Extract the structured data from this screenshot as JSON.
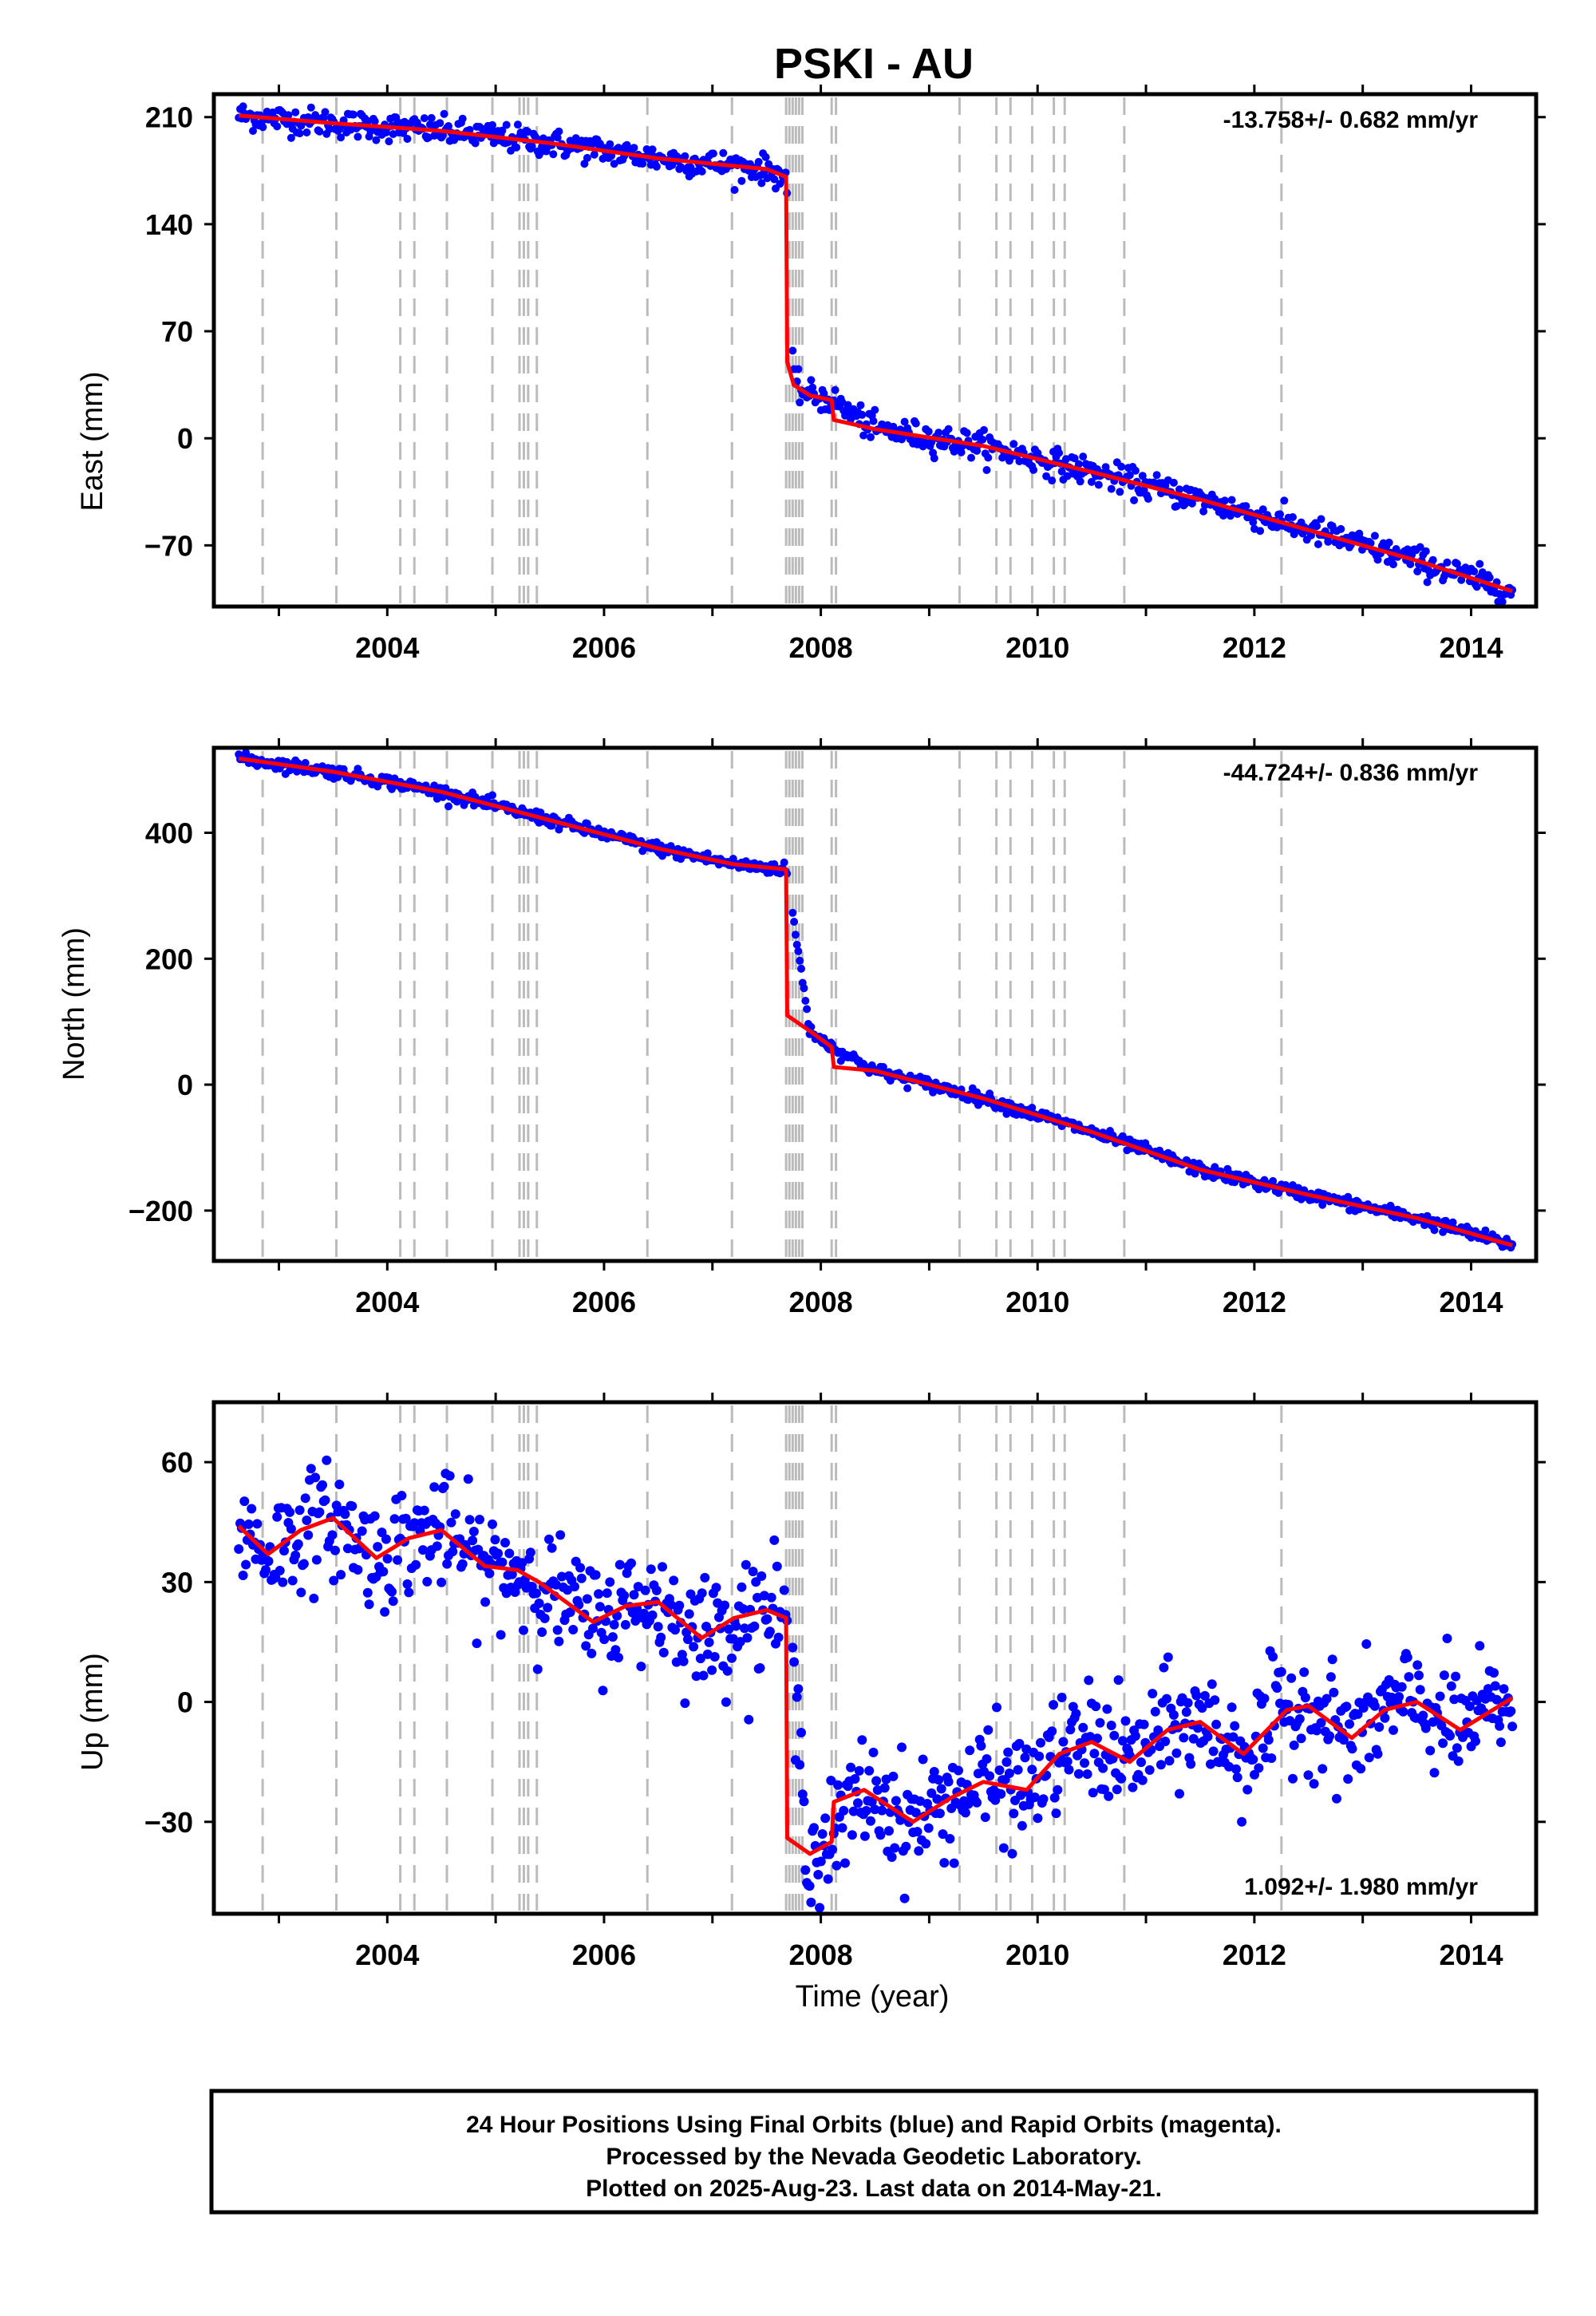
{
  "title": "PSKI - AU",
  "chart_data": [
    {
      "type": "scatter",
      "component": "East",
      "ylabel": "East (mm)",
      "xlabel": "",
      "xlim": [
        2002.4,
        2014.6
      ],
      "ylim": [
        -110,
        225
      ],
      "yticks": [
        210,
        140,
        70,
        0,
        -70
      ],
      "ytick_labels": [
        "210",
        "140",
        "70",
        "0",
        "−70"
      ],
      "xticks": [
        2004,
        2006,
        2008,
        2010,
        2012,
        2014
      ],
      "xtick_labels": [
        "2004",
        "2006",
        "2008",
        "2010",
        "2012",
        "2014"
      ],
      "rate_label": "-13.758+/- 0.682 mm/yr",
      "rate_position": "top-right",
      "model_line": [
        [
          2002.63,
          211
        ],
        [
          2003.5,
          206
        ],
        [
          2004.5,
          201
        ],
        [
          2005.5,
          193
        ],
        [
          2006.5,
          183
        ],
        [
          2007.5,
          176
        ],
        [
          2007.68,
          171
        ],
        [
          2007.69,
          50
        ],
        [
          2007.75,
          35
        ],
        [
          2007.9,
          28
        ],
        [
          2008.1,
          25
        ],
        [
          2008.12,
          12
        ],
        [
          2008.5,
          6
        ],
        [
          2009.5,
          -5
        ],
        [
          2010.5,
          -22
        ],
        [
          2011.5,
          -40
        ],
        [
          2012.5,
          -60
        ],
        [
          2013.5,
          -80
        ],
        [
          2014.38,
          -100
        ]
      ],
      "observations": [
        [
          2002.63,
          211
        ],
        [
          2003.5,
          206
        ],
        [
          2004.5,
          201
        ],
        [
          2005.5,
          193
        ],
        [
          2006.5,
          183
        ],
        [
          2007.5,
          176
        ],
        [
          2007.68,
          171
        ],
        [
          2007.75,
          35
        ],
        [
          2007.9,
          28
        ],
        [
          2008.1,
          25
        ],
        [
          2008.5,
          6
        ],
        [
          2009.5,
          -5
        ],
        [
          2010.5,
          -22
        ],
        [
          2011.5,
          -40
        ],
        [
          2012.5,
          -60
        ],
        [
          2013.5,
          -80
        ],
        [
          2014.38,
          -100
        ]
      ],
      "scatter_sd": 4.5,
      "colors": {
        "observations": "#0000ff",
        "model": "#ff0000",
        "events": "#bbbbbb"
      }
    },
    {
      "type": "scatter",
      "component": "North",
      "ylabel": "North (mm)",
      "xlabel": "",
      "xlim": [
        2002.4,
        2014.6
      ],
      "ylim": [
        -280,
        535
      ],
      "yticks": [
        400,
        200,
        0,
        -200
      ],
      "ytick_labels": [
        "400",
        "200",
        "0",
        "−200"
      ],
      "xticks": [
        2004,
        2006,
        2008,
        2010,
        2012,
        2014
      ],
      "xtick_labels": [
        "2004",
        "2006",
        "2008",
        "2010",
        "2012",
        "2014"
      ],
      "rate_label": "-44.724+/- 0.836 mm/yr",
      "rate_position": "top-right",
      "model_line": [
        [
          2002.63,
          518
        ],
        [
          2003.5,
          497
        ],
        [
          2004.5,
          465
        ],
        [
          2005.5,
          420
        ],
        [
          2006.5,
          375
        ],
        [
          2007.2,
          350
        ],
        [
          2007.68,
          342
        ],
        [
          2007.69,
          110
        ],
        [
          2007.9,
          85
        ],
        [
          2008.1,
          60
        ],
        [
          2008.12,
          28
        ],
        [
          2008.5,
          22
        ],
        [
          2009.5,
          -22
        ],
        [
          2010.5,
          -75
        ],
        [
          2011.5,
          -135
        ],
        [
          2012.5,
          -175
        ],
        [
          2013.5,
          -212
        ],
        [
          2014.38,
          -255
        ]
      ],
      "observations": [
        [
          2002.63,
          518
        ],
        [
          2003.5,
          497
        ],
        [
          2004.5,
          465
        ],
        [
          2005.5,
          420
        ],
        [
          2006.5,
          375
        ],
        [
          2007.2,
          350
        ],
        [
          2007.68,
          342
        ],
        [
          2007.9,
          85
        ],
        [
          2008.1,
          60
        ],
        [
          2008.5,
          22
        ],
        [
          2009.5,
          -22
        ],
        [
          2010.5,
          -75
        ],
        [
          2011.5,
          -135
        ],
        [
          2012.5,
          -175
        ],
        [
          2013.5,
          -212
        ],
        [
          2014.38,
          -255
        ]
      ],
      "scatter_sd": 5,
      "colors": {
        "observations": "#0000ff",
        "model": "#ff0000",
        "events": "#bbbbbb"
      }
    },
    {
      "type": "scatter",
      "component": "Up",
      "ylabel": "Up (mm)",
      "xlabel": "Time (year)",
      "xlim": [
        2002.4,
        2014.6
      ],
      "ylim": [
        -53,
        75
      ],
      "yticks": [
        60,
        30,
        0,
        -30
      ],
      "ytick_labels": [
        "60",
        "30",
        "0",
        "−30"
      ],
      "xticks": [
        2004,
        2006,
        2008,
        2010,
        2012,
        2014
      ],
      "xtick_labels": [
        "2004",
        "2006",
        "2008",
        "2010",
        "2012",
        "2014"
      ],
      "rate_label": "1.092+/- 1.980 mm/yr",
      "rate_position": "bottom-right",
      "model_line": [
        [
          2002.63,
          44
        ],
        [
          2002.9,
          37
        ],
        [
          2003.2,
          43
        ],
        [
          2003.5,
          46
        ],
        [
          2003.9,
          36
        ],
        [
          2004.2,
          41
        ],
        [
          2004.5,
          43
        ],
        [
          2004.9,
          34
        ],
        [
          2005.2,
          33
        ],
        [
          2005.4,
          30
        ],
        [
          2005.9,
          20
        ],
        [
          2006.2,
          24
        ],
        [
          2006.5,
          25
        ],
        [
          2006.9,
          16
        ],
        [
          2007.2,
          21
        ],
        [
          2007.5,
          23
        ],
        [
          2007.68,
          21
        ],
        [
          2007.69,
          -34
        ],
        [
          2007.9,
          -38
        ],
        [
          2008.1,
          -35
        ],
        [
          2008.12,
          -25
        ],
        [
          2008.4,
          -22
        ],
        [
          2008.85,
          -30
        ],
        [
          2009.2,
          -24
        ],
        [
          2009.5,
          -20
        ],
        [
          2009.9,
          -22
        ],
        [
          2010.2,
          -13
        ],
        [
          2010.5,
          -10
        ],
        [
          2010.85,
          -15
        ],
        [
          2011.2,
          -7
        ],
        [
          2011.5,
          -5
        ],
        [
          2011.9,
          -13
        ],
        [
          2012.3,
          -2
        ],
        [
          2012.5,
          -1
        ],
        [
          2012.9,
          -9
        ],
        [
          2013.2,
          -2
        ],
        [
          2013.5,
          0
        ],
        [
          2013.9,
          -7
        ],
        [
          2014.38,
          1
        ]
      ],
      "observations": [
        [
          2002.63,
          44
        ],
        [
          2002.9,
          37
        ],
        [
          2003.2,
          43
        ],
        [
          2003.5,
          46
        ],
        [
          2003.9,
          36
        ],
        [
          2004.2,
          41
        ],
        [
          2004.5,
          43
        ],
        [
          2004.9,
          34
        ],
        [
          2005.2,
          33
        ],
        [
          2005.4,
          30
        ],
        [
          2005.9,
          20
        ],
        [
          2006.2,
          24
        ],
        [
          2006.5,
          25
        ],
        [
          2006.9,
          16
        ],
        [
          2007.2,
          21
        ],
        [
          2007.5,
          23
        ],
        [
          2007.68,
          21
        ],
        [
          2007.9,
          -38
        ],
        [
          2008.1,
          -35
        ],
        [
          2008.4,
          -22
        ],
        [
          2008.85,
          -30
        ],
        [
          2009.2,
          -24
        ],
        [
          2009.5,
          -20
        ],
        [
          2009.9,
          -22
        ],
        [
          2010.2,
          -13
        ],
        [
          2010.5,
          -10
        ],
        [
          2010.85,
          -15
        ],
        [
          2011.2,
          -7
        ],
        [
          2011.5,
          -5
        ],
        [
          2011.9,
          -13
        ],
        [
          2012.3,
          -2
        ],
        [
          2012.5,
          -1
        ],
        [
          2012.9,
          -9
        ],
        [
          2013.2,
          -2
        ],
        [
          2013.5,
          0
        ],
        [
          2013.9,
          -7
        ],
        [
          2014.38,
          1
        ]
      ],
      "scatter_sd": 7,
      "colors": {
        "observations": "#0000ff",
        "model": "#ff0000",
        "events": "#bbbbbb"
      }
    }
  ],
  "event_lines": [
    2002.85,
    2003.53,
    2004.12,
    2004.25,
    2004.55,
    2004.97,
    2005.22,
    2005.26,
    2005.3,
    2005.38,
    2006.4,
    2007.18,
    2007.68,
    2007.71,
    2007.74,
    2007.77,
    2007.8,
    2007.83,
    2008.1,
    2008.14,
    2009.28,
    2009.62,
    2009.75,
    2009.95,
    2010.15,
    2010.25,
    2010.8,
    2012.25
  ],
  "footer": {
    "line1": "24 Hour Positions Using Final Orbits (blue) and Rapid Orbits (magenta).",
    "line2": "Processed by the Nevada Geodetic Laboratory.",
    "line3": "Plotted on 2025-Aug-23. Last data on 2014-May-21."
  }
}
